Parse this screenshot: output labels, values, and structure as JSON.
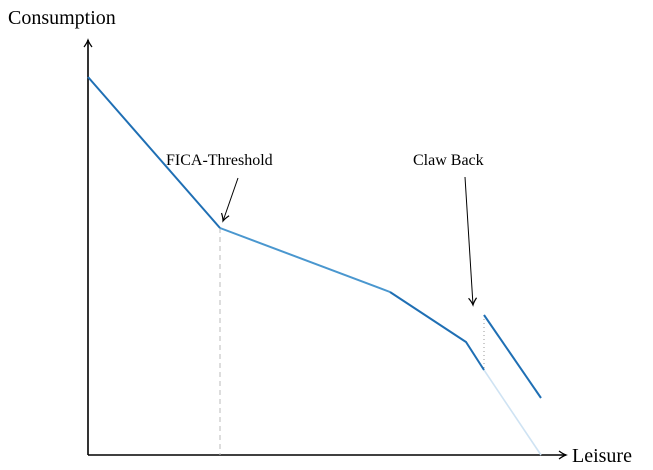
{
  "axes": {
    "y_label": "Consumption",
    "x_label": "Leisure"
  },
  "annotations": [
    {
      "label": "FICA-Threshold"
    },
    {
      "label": "Claw Back"
    }
  ]
}
